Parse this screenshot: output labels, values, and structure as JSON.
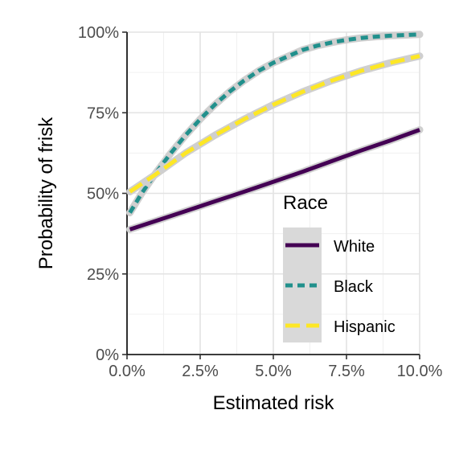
{
  "chart_data": {
    "type": "line",
    "xlabel": "Estimated risk",
    "ylabel": "Probability of frisk",
    "xlim": [
      0.0,
      10.0
    ],
    "ylim": [
      0,
      100
    ],
    "x_ticks": [
      0.0,
      2.5,
      5.0,
      7.5,
      10.0
    ],
    "x_tick_labels": [
      "0.0%",
      "2.5%",
      "5.0%",
      "7.5%",
      "10.0%"
    ],
    "y_ticks": [
      0,
      25,
      50,
      75,
      100
    ],
    "y_tick_labels": [
      "0%",
      "25%",
      "50%",
      "75%",
      "100%"
    ],
    "grid": true,
    "legend": {
      "title": "Race",
      "position": "inside-bottom-right"
    },
    "series": [
      {
        "name": "White",
        "color": "#440154",
        "dash": "solid",
        "x": [
          0.1,
          1.0,
          2.0,
          3.0,
          4.0,
          5.0,
          6.0,
          7.0,
          8.0,
          9.0,
          10.0
        ],
        "y": [
          38.8,
          41.5,
          44.5,
          47.5,
          50.5,
          53.6,
          56.7,
          60.0,
          63.3,
          66.4,
          69.7
        ]
      },
      {
        "name": "Black",
        "color": "#21908C",
        "dash": "short-dash",
        "x": [
          0.1,
          0.5,
          1.0,
          1.5,
          2.0,
          2.5,
          3.0,
          3.5,
          4.0,
          4.5,
          5.0,
          5.5,
          6.0,
          6.5,
          7.0,
          7.5,
          8.0,
          8.5,
          9.0,
          9.5,
          10.0
        ],
        "y": [
          44,
          50,
          56.5,
          62.5,
          68,
          73,
          77.5,
          81.5,
          85,
          88,
          90.5,
          92.5,
          94.5,
          95.8,
          96.8,
          97.6,
          98.2,
          98.6,
          98.9,
          99.1,
          99.3
        ]
      },
      {
        "name": "Hispanic",
        "color": "#FDE725",
        "dash": "long-dash",
        "x": [
          0.1,
          1.0,
          2.0,
          3.0,
          4.0,
          5.0,
          6.0,
          7.0,
          8.0,
          9.0,
          10.0
        ],
        "y": [
          50.5,
          56,
          62.5,
          68,
          73,
          77.5,
          81.5,
          85,
          88,
          90.5,
          92.6
        ]
      }
    ]
  }
}
